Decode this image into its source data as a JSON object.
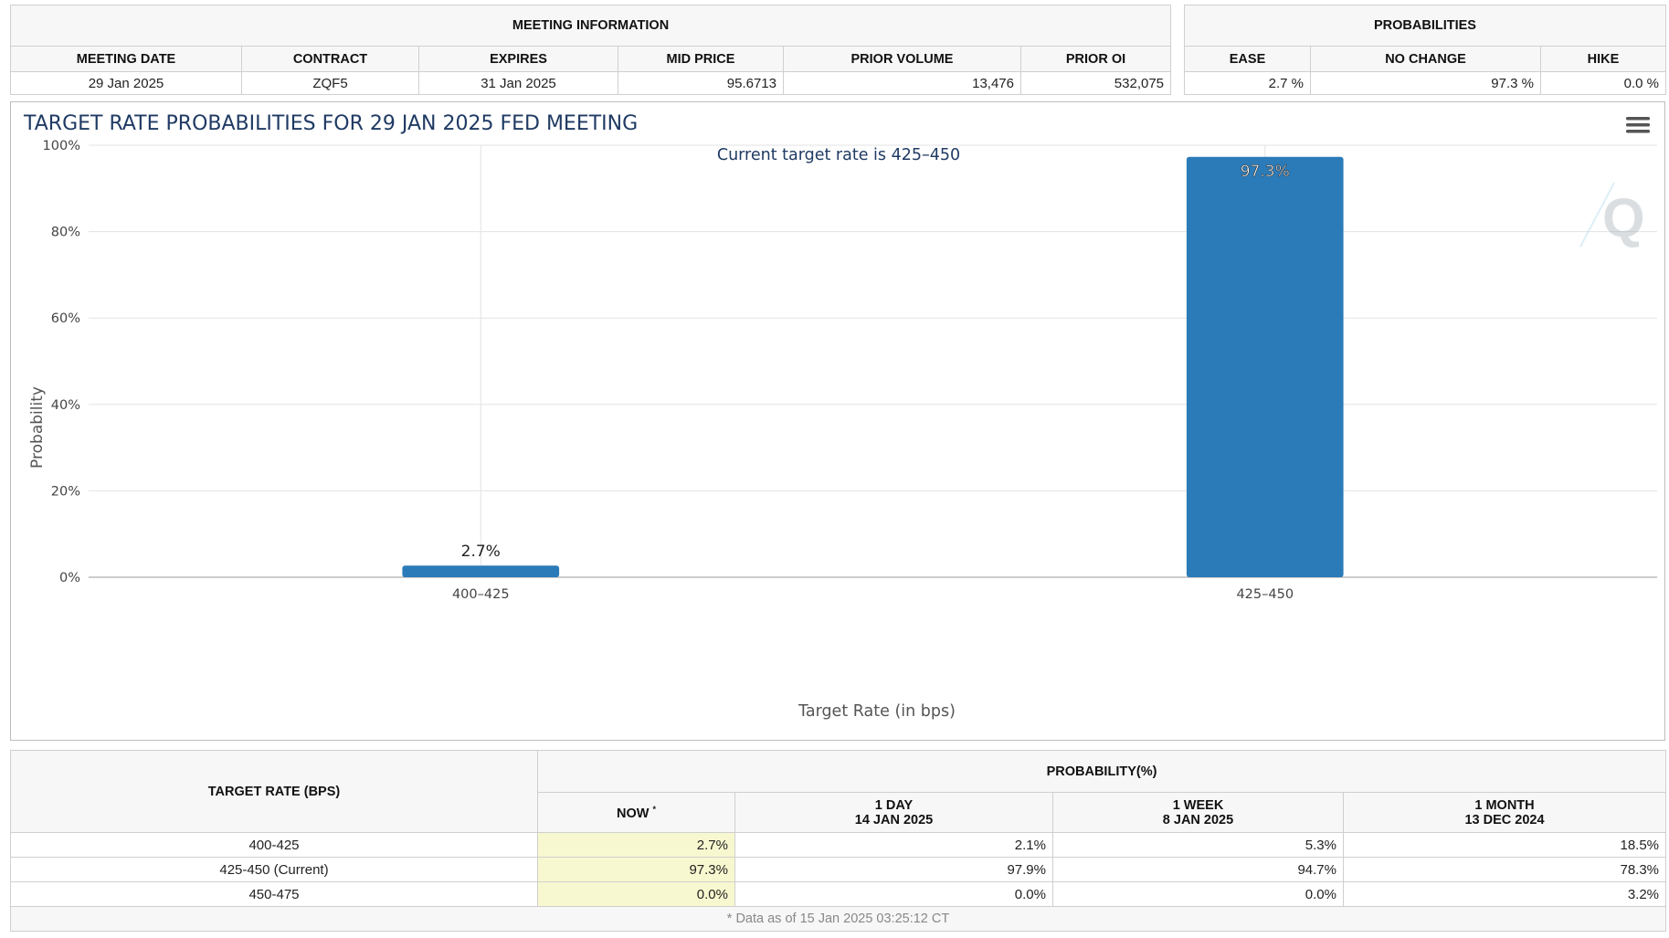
{
  "meeting_info": {
    "group_title": "MEETING INFORMATION",
    "headers": [
      "MEETING DATE",
      "CONTRACT",
      "EXPIRES",
      "MID PRICE",
      "PRIOR VOLUME",
      "PRIOR OI"
    ],
    "values": [
      "29 Jan 2025",
      "ZQF5",
      "31 Jan 2025",
      "95.6713",
      "13,476",
      "532,075"
    ]
  },
  "probabilities": {
    "group_title": "PROBABILITIES",
    "headers": [
      "EASE",
      "NO CHANGE",
      "HIKE"
    ],
    "values": [
      "2.7 %",
      "97.3 %",
      "0.0 %"
    ]
  },
  "chart_data": {
    "type": "bar",
    "title": "TARGET RATE PROBABILITIES FOR 29 JAN 2025 FED MEETING",
    "subtitle": "Current target rate is 425–450",
    "xlabel": "Target Rate (in bps)",
    "ylabel": "Probability",
    "categories": [
      "400–425",
      "425–450"
    ],
    "values": [
      2.7,
      97.3
    ],
    "data_labels": [
      "2.7%",
      "97.3%"
    ],
    "ylim": [
      0,
      100
    ],
    "yticks": [
      0,
      20,
      40,
      60,
      80,
      100
    ],
    "ytick_labels": [
      "0%",
      "20%",
      "40%",
      "60%",
      "80%",
      "100%"
    ],
    "bar_color": "#2b7bb9",
    "grid": true,
    "legend": "none",
    "watermark": "Q"
  },
  "probability_table": {
    "rate_header": "TARGET RATE (BPS)",
    "group_title": "PROBABILITY(%)",
    "now_header": "NOW",
    "now_marker": "*",
    "period_headers": [
      {
        "line1": "1 DAY",
        "line2": "14 JAN 2025"
      },
      {
        "line1": "1 WEEK",
        "line2": "8 JAN 2025"
      },
      {
        "line1": "1 MONTH",
        "line2": "13 DEC 2024"
      }
    ],
    "rows": [
      {
        "rate": "400-425",
        "now": "2.7%",
        "day": "2.1%",
        "week": "5.3%",
        "month": "18.5%"
      },
      {
        "rate": "425-450 (Current)",
        "now": "97.3%",
        "day": "97.9%",
        "week": "94.7%",
        "month": "78.3%"
      },
      {
        "rate": "450-475",
        "now": "0.0%",
        "day": "0.0%",
        "week": "0.0%",
        "month": "3.2%"
      }
    ],
    "footnote": "* Data as of 15 Jan 2025 03:25:12 CT"
  },
  "icons": {
    "menu": "hamburger-menu-icon"
  }
}
